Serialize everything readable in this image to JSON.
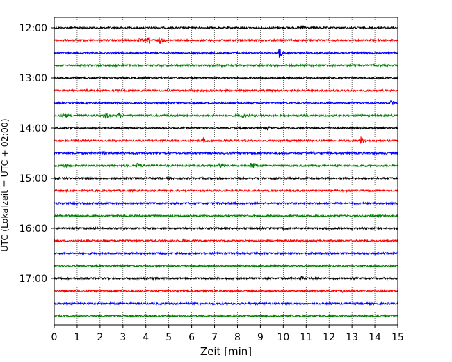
{
  "chart_data": {
    "type": "line",
    "title": "",
    "xlabel": "Zeit  [min]",
    "ylabel": "UTC (Lokalzeit = UTC + 02:00)",
    "xlim": [
      0,
      15
    ],
    "x_ticks": [
      0,
      1,
      2,
      3,
      4,
      5,
      6,
      7,
      8,
      9,
      10,
      11,
      12,
      13,
      14,
      15
    ],
    "x_tick_labels": [
      "0",
      "1",
      "2",
      "3",
      "4",
      "5",
      "6",
      "7",
      "8",
      "9",
      "10",
      "11",
      "12",
      "13",
      "14",
      "15"
    ],
    "y_tick_labels": [
      "12:00",
      "13:00",
      "14:00",
      "15:00",
      "16:00",
      "17:00"
    ],
    "y_tick_rows": [
      0,
      4,
      8,
      12,
      16,
      20
    ],
    "grid": "vertical dotted",
    "colors_cycle": [
      "#000000",
      "#ff0000",
      "#0000ff",
      "#008000"
    ],
    "traces": [
      {
        "start": "12:00",
        "color": "#000000",
        "events": [
          {
            "t": 10.8,
            "amp": 0.45
          }
        ]
      },
      {
        "start": "12:15",
        "color": "#ff0000",
        "events": [
          {
            "t": 3.7,
            "amp": 0.3
          },
          {
            "t": 4.1,
            "amp": 0.45
          },
          {
            "t": 4.6,
            "amp": 0.5
          }
        ]
      },
      {
        "start": "12:30",
        "color": "#0000ff",
        "events": [
          {
            "t": 9.8,
            "amp": 1.0
          }
        ]
      },
      {
        "start": "12:45",
        "color": "#008000",
        "events": []
      },
      {
        "start": "13:00",
        "color": "#000000",
        "events": []
      },
      {
        "start": "13:15",
        "color": "#ff0000",
        "events": []
      },
      {
        "start": "13:30",
        "color": "#0000ff",
        "events": [
          {
            "t": 14.7,
            "amp": 0.55
          }
        ]
      },
      {
        "start": "13:45",
        "color": "#008000",
        "events": [
          {
            "t": 0.4,
            "amp": 0.45
          },
          {
            "t": 2.2,
            "amp": 0.65
          },
          {
            "t": 2.8,
            "amp": 0.5
          },
          {
            "t": 8.2,
            "amp": 0.3
          }
        ]
      },
      {
        "start": "14:00",
        "color": "#000000",
        "events": [
          {
            "t": 9.3,
            "amp": 0.3
          }
        ]
      },
      {
        "start": "14:15",
        "color": "#ff0000",
        "events": [
          {
            "t": 6.5,
            "amp": 0.3
          },
          {
            "t": 13.4,
            "amp": 0.65
          }
        ]
      },
      {
        "start": "14:30",
        "color": "#0000ff",
        "events": [
          {
            "t": 2.1,
            "amp": 0.25
          },
          {
            "t": 11.2,
            "amp": 0.2
          }
        ]
      },
      {
        "start": "14:45",
        "color": "#008000",
        "events": [
          {
            "t": 0.4,
            "amp": 0.35
          },
          {
            "t": 3.6,
            "amp": 0.45
          },
          {
            "t": 7.2,
            "amp": 0.45
          },
          {
            "t": 8.6,
            "amp": 0.9
          }
        ]
      },
      {
        "start": "15:00",
        "color": "#000000",
        "events": []
      },
      {
        "start": "15:15",
        "color": "#ff0000",
        "events": []
      },
      {
        "start": "15:30",
        "color": "#0000ff",
        "events": []
      },
      {
        "start": "15:45",
        "color": "#008000",
        "events": []
      },
      {
        "start": "16:00",
        "color": "#000000",
        "events": []
      },
      {
        "start": "16:15",
        "color": "#ff0000",
        "events": [
          {
            "t": 5.6,
            "amp": 0.2
          }
        ]
      },
      {
        "start": "16:30",
        "color": "#0000ff",
        "events": []
      },
      {
        "start": "16:45",
        "color": "#008000",
        "events": []
      },
      {
        "start": "17:00",
        "color": "#000000",
        "events": [
          {
            "t": 10.8,
            "amp": 0.25
          }
        ]
      },
      {
        "start": "17:15",
        "color": "#ff0000",
        "events": [
          {
            "t": 12.5,
            "amp": 0.25
          }
        ]
      },
      {
        "start": "17:30",
        "color": "#0000ff",
        "events": []
      },
      {
        "start": "17:45",
        "color": "#008000",
        "events": []
      }
    ]
  }
}
